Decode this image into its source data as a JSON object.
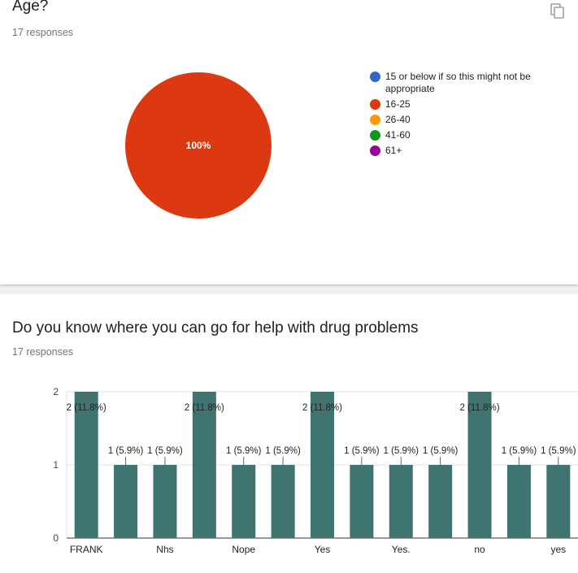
{
  "questions": [
    {
      "title": "Age?",
      "responses": "17 responses"
    },
    {
      "title": "Do you know where you can go for help with drug problems",
      "responses": "17 responses"
    }
  ],
  "icons": {
    "copy": "copy-icon"
  },
  "colors": {
    "bar": "#3f7470",
    "pie_slices": [
      "#3366cc",
      "#dc3912",
      "#ff9900",
      "#109618",
      "#990099"
    ]
  },
  "chart_data": [
    {
      "type": "pie",
      "categories": [
        "15 or below if so this might not be appropriate",
        "16-25",
        "26-40",
        "41-60",
        "61+"
      ],
      "values": [
        0,
        17,
        0,
        0,
        0
      ],
      "data_labels": [
        "",
        "100%",
        "",
        "",
        ""
      ],
      "colors": [
        "#3366cc",
        "#dc3912",
        "#ff9900",
        "#109618",
        "#990099"
      ],
      "legend": "right"
    },
    {
      "type": "bar",
      "categories": [
        "FRANK",
        "",
        "Nhs",
        "",
        "Nope",
        "",
        "Yes",
        "",
        "Yes.",
        "",
        "no",
        "",
        "yes"
      ],
      "values": [
        2,
        1,
        1,
        2,
        1,
        1,
        2,
        1,
        1,
        1,
        2,
        1,
        1
      ],
      "data_labels": [
        "2 (11.8%)",
        "1 (5.9%)",
        "1 (5.9%)",
        "2 (11.8%)",
        "1 (5.9%)",
        "1 (5.9%)",
        "2 (11.8%)",
        "1 (5.9%)",
        "1 (5.9%)",
        "1 (5.9%)",
        "2 (11.8%)",
        "1 (5.9%)",
        "1 (5.9%)"
      ],
      "ylim": [
        0,
        2
      ],
      "yticks": [
        0,
        1,
        2
      ],
      "grid": true,
      "color": "#3f7470"
    }
  ]
}
